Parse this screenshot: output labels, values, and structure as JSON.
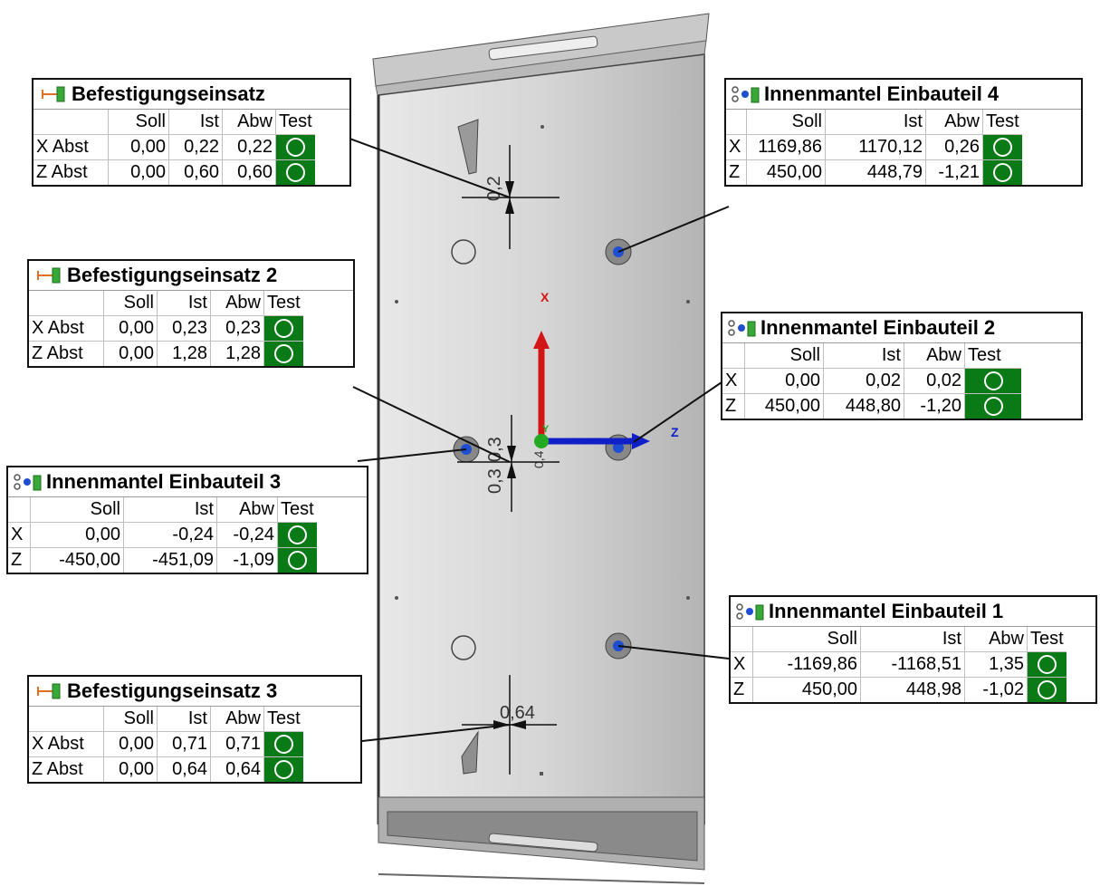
{
  "axes": {
    "x_label": "X",
    "z_label": "Z",
    "y_label": "Y"
  },
  "dimensions": [
    "0,2",
    "0,3",
    "0,3",
    "0,4",
    "0,64"
  ],
  "callouts": [
    {
      "title": "Befestigungseinsatz",
      "icon": "distance-gauge-icon",
      "headers": [
        "Soll",
        "Ist",
        "Abw",
        "Test"
      ],
      "rows": [
        {
          "label": "X Abst",
          "soll": "0,00",
          "ist": "0,22",
          "abw": "0,22",
          "test": "ok"
        },
        {
          "label": "Z Abst",
          "soll": "0,00",
          "ist": "0,60",
          "abw": "0,60",
          "test": "ok"
        }
      ]
    },
    {
      "title": "Befestigungseinsatz 2",
      "icon": "distance-gauge-icon",
      "headers": [
        "Soll",
        "Ist",
        "Abw",
        "Test"
      ],
      "rows": [
        {
          "label": "X Abst",
          "soll": "0,00",
          "ist": "0,23",
          "abw": "0,23",
          "test": "ok"
        },
        {
          "label": "Z Abst",
          "soll": "0,00",
          "ist": "1,28",
          "abw": "1,28",
          "test": "ok"
        }
      ]
    },
    {
      "title": "Befestigungseinsatz 3",
      "icon": "distance-gauge-icon",
      "headers": [
        "Soll",
        "Ist",
        "Abw",
        "Test"
      ],
      "rows": [
        {
          "label": "X Abst",
          "soll": "0,00",
          "ist": "0,71",
          "abw": "0,71",
          "test": "ok"
        },
        {
          "label": "Z Abst",
          "soll": "0,00",
          "ist": "0,64",
          "abw": "0,64",
          "test": "ok"
        }
      ]
    },
    {
      "title": "Innenmantel Einbauteil 4",
      "icon": "point-position-icon",
      "headers": [
        "Soll",
        "Ist",
        "Abw",
        "Test"
      ],
      "rows": [
        {
          "label": "X",
          "soll": "1169,86",
          "ist": "1170,12",
          "abw": "0,26",
          "test": "ok"
        },
        {
          "label": "Z",
          "soll": "450,00",
          "ist": "448,79",
          "abw": "-1,21",
          "test": "ok"
        }
      ]
    },
    {
      "title": "Innenmantel Einbauteil 2",
      "icon": "point-position-icon",
      "headers": [
        "Soll",
        "Ist",
        "Abw",
        "Test"
      ],
      "rows": [
        {
          "label": "X",
          "soll": "0,00",
          "ist": "0,02",
          "abw": "0,02",
          "test": "ok"
        },
        {
          "label": "Z",
          "soll": "450,00",
          "ist": "448,80",
          "abw": "-1,20",
          "test": "ok"
        }
      ]
    },
    {
      "title": "Innenmantel Einbauteil 3",
      "icon": "point-position-icon",
      "headers": [
        "Soll",
        "Ist",
        "Abw",
        "Test"
      ],
      "rows": [
        {
          "label": "X",
          "soll": "0,00",
          "ist": "-0,24",
          "abw": "-0,24",
          "test": "ok"
        },
        {
          "label": "Z",
          "soll": "-450,00",
          "ist": "-451,09",
          "abw": "-1,09",
          "test": "ok"
        }
      ]
    },
    {
      "title": "Innenmantel Einbauteil 1",
      "icon": "point-position-icon",
      "headers": [
        "Soll",
        "Ist",
        "Abw",
        "Test"
      ],
      "rows": [
        {
          "label": "X",
          "soll": "-1169,86",
          "ist": "-1168,51",
          "abw": "1,35",
          "test": "ok"
        },
        {
          "label": "Z",
          "soll": "450,00",
          "ist": "448,98",
          "abw": "-1,02",
          "test": "ok"
        }
      ]
    }
  ],
  "colors": {
    "pass": "#0a7a17",
    "x_axis": "#d41515",
    "z_axis": "#1020c8",
    "origin": "#22aa22"
  }
}
